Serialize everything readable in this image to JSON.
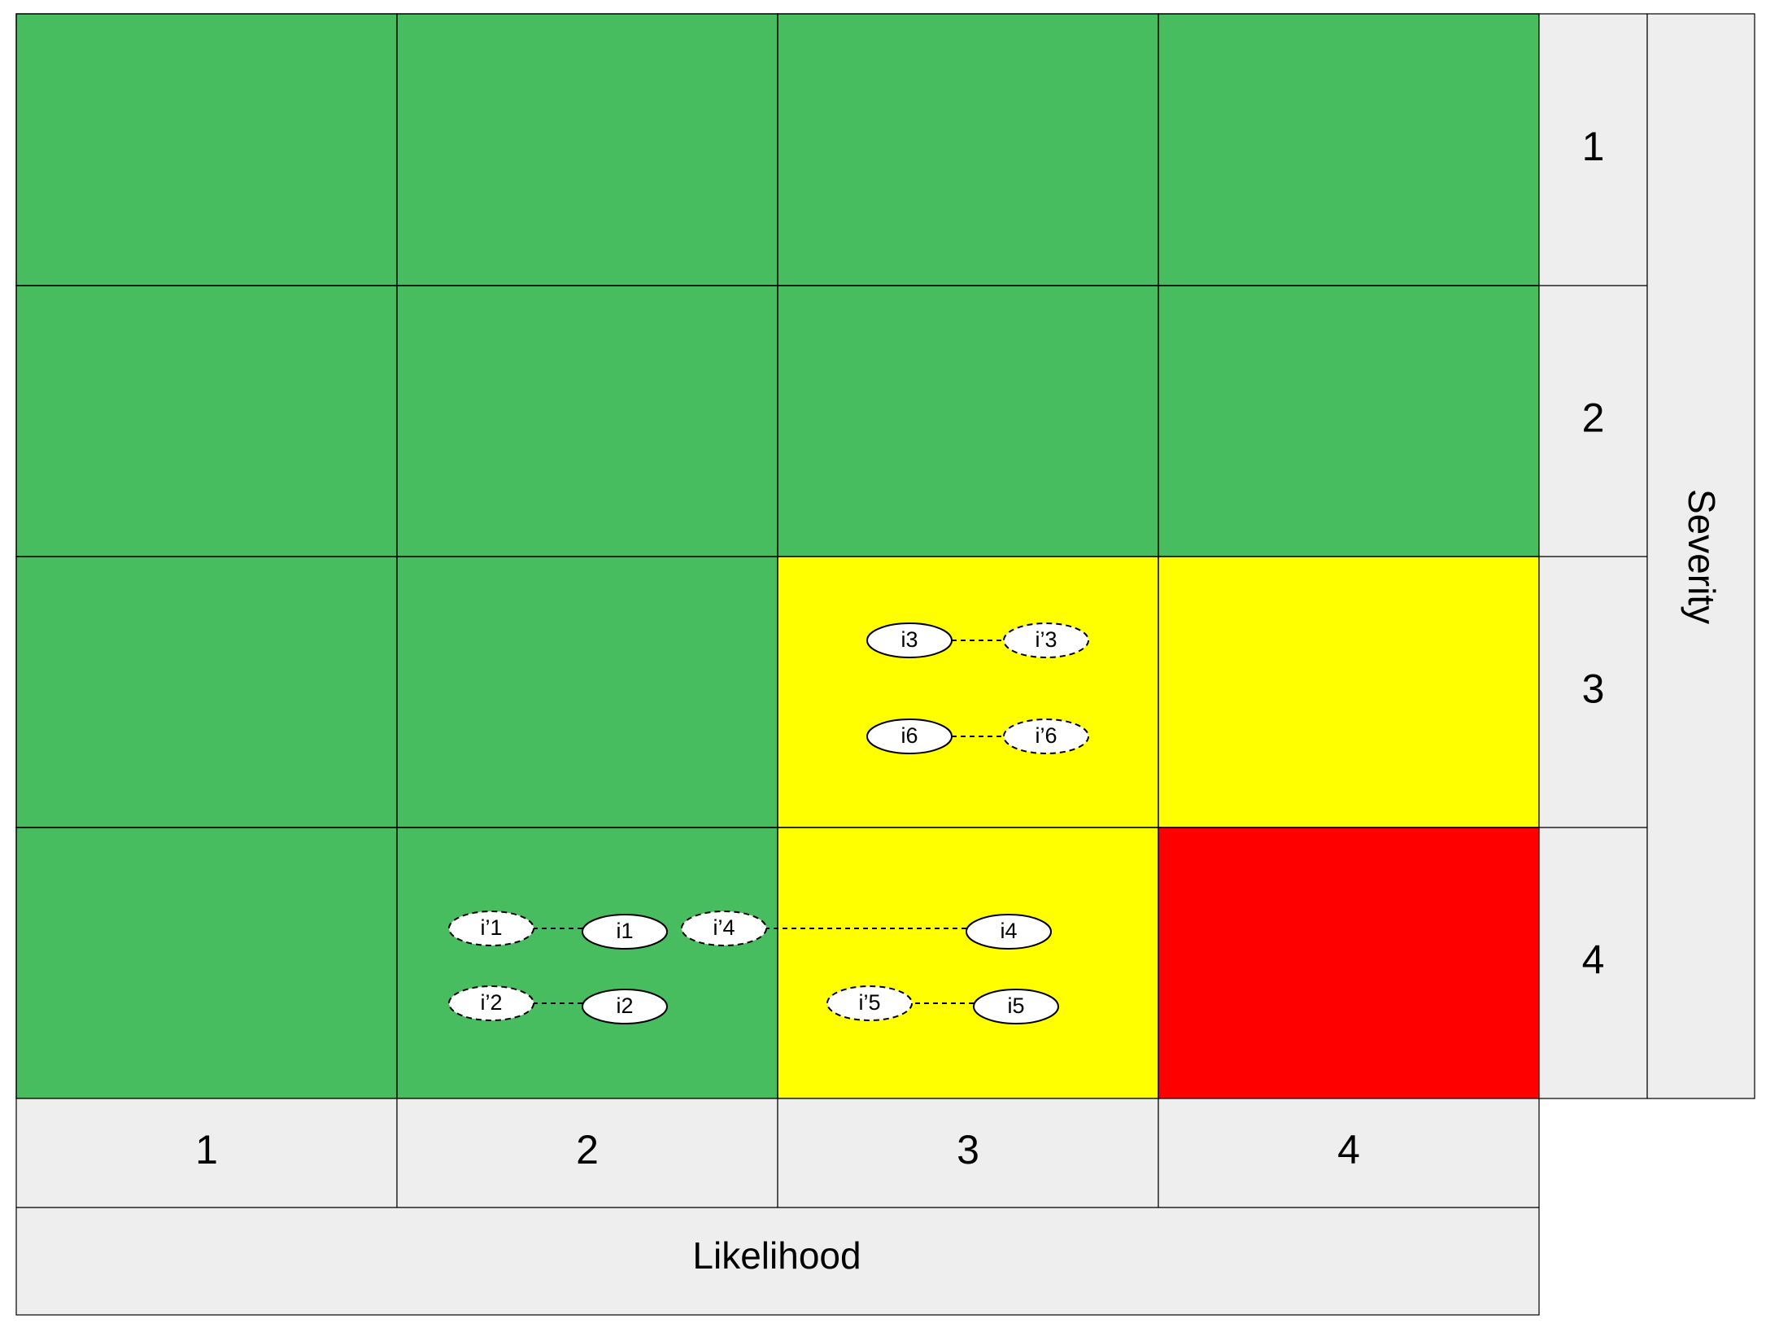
{
  "colors": {
    "green": "#47BD5F",
    "yellow": "#FFFF00",
    "red": "#FF0000",
    "header": "#EEEEEE",
    "node_fill": "#FFFFFF",
    "line": "#000000"
  },
  "axes": {
    "x_title": "Likelihood",
    "y_title": "Severity",
    "x_labels": [
      "1",
      "2",
      "3",
      "4"
    ],
    "y_labels": [
      "1",
      "2",
      "3",
      "4"
    ]
  },
  "matrix": [
    [
      "green",
      "green",
      "green",
      "green"
    ],
    [
      "green",
      "green",
      "green",
      "green"
    ],
    [
      "green",
      "green",
      "yellow",
      "yellow"
    ],
    [
      "green",
      "green",
      "yellow",
      "red"
    ]
  ],
  "nodes": [
    {
      "id": "i1",
      "label": "i1",
      "style": "solid"
    },
    {
      "id": "ip1",
      "label": "i’1",
      "style": "dashed"
    },
    {
      "id": "i2",
      "label": "i2",
      "style": "solid"
    },
    {
      "id": "ip2",
      "label": "i’2",
      "style": "dashed"
    },
    {
      "id": "i3",
      "label": "i3",
      "style": "solid"
    },
    {
      "id": "ip3",
      "label": "i’3",
      "style": "dashed"
    },
    {
      "id": "i4",
      "label": "i4",
      "style": "solid"
    },
    {
      "id": "ip4",
      "label": "i’4",
      "style": "dashed"
    },
    {
      "id": "i5",
      "label": "i5",
      "style": "solid"
    },
    {
      "id": "ip5",
      "label": "i’5",
      "style": "dashed"
    },
    {
      "id": "i6",
      "label": "i6",
      "style": "solid"
    },
    {
      "id": "ip6",
      "label": "i’6",
      "style": "dashed"
    }
  ],
  "edges": [
    {
      "from": "i1",
      "to": "ip1"
    },
    {
      "from": "i2",
      "to": "ip2"
    },
    {
      "from": "i3",
      "to": "ip3"
    },
    {
      "from": "i4",
      "to": "ip4"
    },
    {
      "from": "i5",
      "to": "ip5"
    },
    {
      "from": "i6",
      "to": "ip6"
    }
  ]
}
